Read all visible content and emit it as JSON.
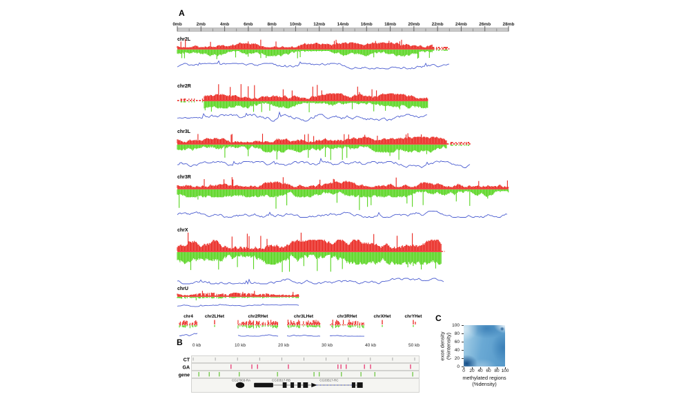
{
  "colors": {
    "red": "#e9231c",
    "green": "#55d41c",
    "blue": "#4a5cd0",
    "ga_mark_pink": "#e8447a",
    "gene_mark_green": "#76c94e",
    "ruler_gray": "#c7c7c7",
    "heatmap_dark_blue": "#11518f",
    "heatmap_light_blue": "#a6cfe5"
  },
  "panel_a": {
    "label": "A",
    "ruler_labels": [
      "0mb",
      "2mb",
      "4mb",
      "6mb",
      "8mb",
      "10mb",
      "12mb",
      "14mb",
      "16mb",
      "18mb",
      "20mb",
      "22mb",
      "24mb",
      "26mb",
      "28mb"
    ],
    "chromosomes": [
      {
        "name": "chr2L",
        "length_mb": 23.0,
        "sparse_end_mb": 1.4
      },
      {
        "name": "chr2R",
        "length_mb": 21.2,
        "sparse_start_mb": 2.2
      },
      {
        "name": "chr3L",
        "length_mb": 24.8,
        "sparse_end_mb": 2.0
      },
      {
        "name": "chr3R",
        "length_mb": 28.0
      },
      {
        "name": "chrX",
        "length_mb": 22.6,
        "sparse_end_mb": 0.3
      },
      {
        "name": "chrU",
        "length_mb": 10.3
      }
    ],
    "het_chromosomes": [
      {
        "name": "chr4",
        "blue_line": true
      },
      {
        "name": "chr2LHet",
        "blue_line": false
      },
      {
        "name": "chr2RHet",
        "blue_line": true
      },
      {
        "name": "chr3LHet",
        "blue_line": true
      },
      {
        "name": "chr3RHet",
        "blue_line": true
      },
      {
        "name": "chrXHet",
        "blue_line": false
      },
      {
        "name": "chrYHet",
        "blue_line": false
      }
    ]
  },
  "panel_b": {
    "label": "B",
    "scale_labels": [
      "0 kb",
      "10 kb",
      "20 kb",
      "30 kb",
      "40 kb",
      "50 kb"
    ],
    "row_labels": [
      "CT",
      "GA",
      "gene"
    ],
    "ct_ticks_kb": [
      0,
      5,
      10,
      15,
      20,
      25,
      30,
      35,
      40,
      45,
      50
    ],
    "ga_marks_kb": [
      7.9,
      12.7,
      14.0,
      21.1,
      32.5,
      33.2,
      34.4,
      38.6,
      40.0,
      49.2
    ],
    "gene_marks_kb": [
      0.5,
      2.9,
      5.2,
      9.8,
      18.6,
      27.0,
      28.2,
      33.3,
      37.8,
      41.0,
      49.7
    ],
    "gene_labels": [
      {
        "text": "CG17003-RA",
        "left_kb": 8.1
      },
      {
        "text": "CG33517-RB",
        "left_kb": 17.3
      },
      {
        "text": "CG33517-RC",
        "left_kb": 28.3
      }
    ],
    "gene_model": {
      "oval_center_kb": 10.0,
      "connector_from_kb": 13.2,
      "connector_to_kb": 38.2,
      "segments": [
        {
          "type": "thick",
          "from_kb": 13.2,
          "to_kb": 17.6
        },
        {
          "type": "exon",
          "from_kb": 19.8,
          "to_kb": 20.7
        },
        {
          "type": "exon",
          "from_kb": 21.6,
          "to_kb": 22.4
        },
        {
          "type": "exon",
          "from_kb": 23.2,
          "to_kb": 24.0
        },
        {
          "type": "exon",
          "from_kb": 24.5,
          "to_kb": 25.6
        },
        {
          "type": "arrow",
          "from_kb": 26.4,
          "to_kb": 27.7
        },
        {
          "type": "intron",
          "from_kb": 27.7,
          "to_kb": 35.7
        },
        {
          "type": "exon",
          "from_kb": 35.7,
          "to_kb": 36.5
        },
        {
          "type": "exon",
          "from_kb": 36.9,
          "to_kb": 38.2
        }
      ]
    }
  },
  "panel_c": {
    "label": "C",
    "x_ticks": [
      "0",
      "20",
      "40",
      "60",
      "80",
      "100"
    ],
    "y_ticks": [
      "0",
      "20",
      "40",
      "60",
      "80",
      "100"
    ],
    "xlabel_line1": "methylated regions",
    "xlabel_line2": "(%density)",
    "ylabel_line1": "exon density",
    "ylabel_line2": "(%intensity)"
  },
  "chart_data": [
    {
      "type": "area",
      "panel": "A",
      "x_axis": "chromosome position (mb)",
      "x_range": [
        0,
        28
      ],
      "tracks_per_chromosome": [
        "red density histogram (up)",
        "green density histogram (mirrored down)",
        "blue signal line"
      ],
      "chromosomes": [
        "chr2L",
        "chr2R",
        "chr3L",
        "chr3R",
        "chrX",
        "chrU",
        "chr4",
        "chr2LHet",
        "chr2RHet",
        "chr3LHet",
        "chr3RHet",
        "chrXHet",
        "chrYHet"
      ],
      "description": "Genome-wide density tracks; values are dense unlabeled signal, not individually readable."
    },
    {
      "type": "heatmap",
      "panel": "C",
      "xlabel": "methylated regions (%density)",
      "ylabel": "exon density (%intensity)",
      "xlim": [
        0,
        100
      ],
      "ylim": [
        0,
        100
      ],
      "x_ticks": [
        0,
        20,
        40,
        60,
        80,
        100
      ],
      "y_ticks": [
        0,
        20,
        40,
        60,
        80,
        100
      ],
      "description": "Blue smoothed 2D density: darkest blob near (0-10, 0-10), light at top-right corner, medium-dark band along top-center and right side."
    }
  ]
}
